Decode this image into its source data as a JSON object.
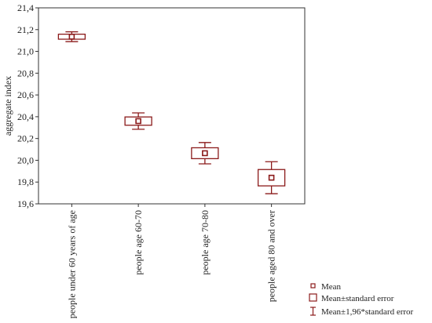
{
  "chart_data": {
    "type": "box",
    "ylabel": "aggregate index",
    "ylim": [
      19.6,
      21.4
    ],
    "yticks": [
      19.6,
      19.8,
      20.0,
      20.2,
      20.4,
      20.6,
      20.8,
      21.0,
      21.2,
      21.4
    ],
    "ytick_labels": [
      "19,6",
      "19,8",
      "20,0",
      "20,2",
      "20,4",
      "20,6",
      "20,8",
      "21,0",
      "21,2",
      "21,4"
    ],
    "categories": [
      "people under 60 years of age",
      "people age 60-70",
      "people age 70-80",
      "people aged 80 and over"
    ],
    "mean": [
      21.135,
      20.36,
      20.065,
      19.84
    ],
    "se": [
      0.023,
      0.038,
      0.05,
      0.075
    ],
    "ci196": [
      0.045,
      0.075,
      0.098,
      0.147
    ],
    "legend": {
      "position": "bottom-right",
      "items": [
        "Mean",
        "Mean±standard error",
        "Mean±1,96*standard error"
      ]
    },
    "color": "#8b1a1a"
  }
}
